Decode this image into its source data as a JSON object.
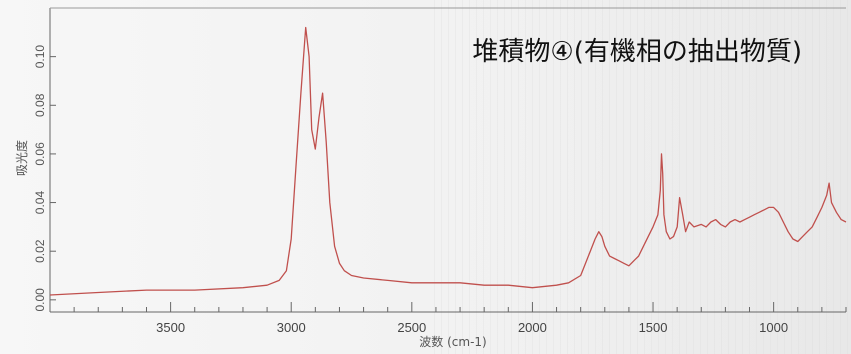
{
  "chart_data": {
    "type": "line",
    "title": "堆積物④(有機相の抽出物質)",
    "xlabel": "波数 (cm-1)",
    "ylabel": "吸光度",
    "x_reversed": true,
    "xlim": [
      4000,
      700
    ],
    "ylim": [
      -0.005,
      0.12
    ],
    "x_ticks": [
      3500,
      3000,
      2500,
      2000,
      1500,
      1000
    ],
    "x_tick_labels": [
      "3500",
      "3000",
      "2500",
      "2000",
      "1500",
      "1000"
    ],
    "y_ticks": [
      0.0,
      0.02,
      0.04,
      0.06,
      0.08,
      0.1
    ],
    "y_tick_labels": [
      "0.00",
      "0.02",
      "0.04",
      "0.06",
      "0.08",
      "0.10"
    ],
    "grid": false,
    "line_color": "#c0504d",
    "series": [
      {
        "name": "",
        "x": [
          4000,
          3800,
          3600,
          3400,
          3200,
          3100,
          3050,
          3020,
          3000,
          2980,
          2960,
          2940,
          2926,
          2915,
          2900,
          2885,
          2870,
          2855,
          2840,
          2820,
          2800,
          2780,
          2750,
          2700,
          2600,
          2500,
          2400,
          2300,
          2200,
          2100,
          2000,
          1900,
          1850,
          1800,
          1780,
          1760,
          1740,
          1725,
          1712,
          1700,
          1680,
          1660,
          1640,
          1620,
          1600,
          1580,
          1560,
          1540,
          1520,
          1500,
          1480,
          1470,
          1465,
          1460,
          1455,
          1445,
          1430,
          1415,
          1400,
          1390,
          1377,
          1365,
          1350,
          1330,
          1300,
          1280,
          1260,
          1240,
          1220,
          1200,
          1180,
          1160,
          1140,
          1120,
          1100,
          1080,
          1060,
          1040,
          1020,
          1000,
          980,
          960,
          940,
          920,
          900,
          880,
          860,
          840,
          820,
          800,
          780,
          770,
          760,
          740,
          720,
          700
        ],
        "y": [
          0.002,
          0.003,
          0.004,
          0.004,
          0.005,
          0.006,
          0.008,
          0.012,
          0.025,
          0.055,
          0.085,
          0.112,
          0.1,
          0.07,
          0.062,
          0.075,
          0.085,
          0.065,
          0.04,
          0.022,
          0.015,
          0.012,
          0.01,
          0.009,
          0.008,
          0.007,
          0.007,
          0.007,
          0.006,
          0.006,
          0.005,
          0.006,
          0.007,
          0.01,
          0.015,
          0.02,
          0.025,
          0.028,
          0.026,
          0.022,
          0.018,
          0.017,
          0.016,
          0.015,
          0.014,
          0.016,
          0.018,
          0.022,
          0.026,
          0.03,
          0.035,
          0.045,
          0.06,
          0.052,
          0.035,
          0.028,
          0.025,
          0.026,
          0.03,
          0.042,
          0.035,
          0.028,
          0.032,
          0.03,
          0.031,
          0.03,
          0.032,
          0.033,
          0.031,
          0.03,
          0.032,
          0.033,
          0.032,
          0.033,
          0.034,
          0.035,
          0.036,
          0.037,
          0.038,
          0.038,
          0.036,
          0.032,
          0.028,
          0.025,
          0.024,
          0.026,
          0.028,
          0.03,
          0.034,
          0.038,
          0.043,
          0.048,
          0.04,
          0.036,
          0.033,
          0.032
        ]
      }
    ]
  }
}
